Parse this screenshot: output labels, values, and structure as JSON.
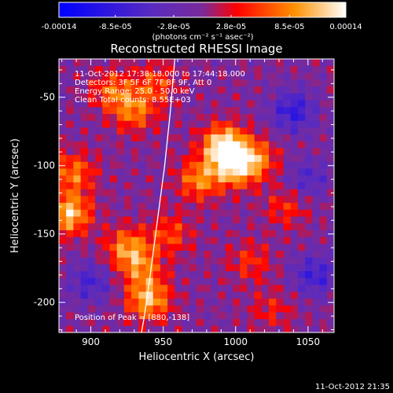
{
  "colorbar": {
    "tick_labels": [
      "-0.00014",
      "-8.5e-05",
      "-2.8e-05",
      "2.8e-05",
      "8.5e-05",
      "0.00014"
    ],
    "tick_values": [
      -0.00014,
      -8.5e-05,
      -2.8e-05,
      2.8e-05,
      8.5e-05,
      0.00014
    ],
    "range": [
      -0.00014,
      0.00014
    ],
    "unit_label": "(photons cm⁻² s⁻¹ asec⁻²)",
    "colors": [
      "#0000ff",
      "#5a2bbf",
      "#7a2a9a",
      "#ff0000",
      "#ff9000",
      "#ffffff"
    ]
  },
  "chart_data": {
    "type": "heatmap",
    "title": "Reconstructed RHESSI Image",
    "xlabel": "Heliocentric X (arcsec)",
    "ylabel": "Heliocentric Y (arcsec)",
    "xlim": [
      878,
      1068
    ],
    "ylim": [
      -222,
      -22
    ],
    "xticks": [
      900,
      950,
      1000,
      1050
    ],
    "yticks": [
      -50,
      -100,
      -150,
      -200
    ],
    "annotations": [
      "11-Oct-2012 17:38:18.000 to 17:44:18.000",
      "Detectors: 3F 5F 6F 7F 8F 9F, Att 0",
      "Energy Range: 25.0 - 50.0 keV",
      "Clean     Total counts: 8.55E+03"
    ],
    "peak_label": "Position of Peak = [880,-138]",
    "peak": [
      880,
      -138
    ],
    "limb_curve": [
      [
        958,
        -22
      ],
      [
        955,
        -60
      ],
      [
        951,
        -100
      ],
      [
        946,
        -140
      ],
      [
        941,
        -180
      ],
      [
        937,
        -210
      ],
      [
        935,
        -222
      ]
    ],
    "sources": [
      {
        "x": 992,
        "y": -85,
        "flux": 0.00014
      },
      {
        "x": 1000,
        "y": -100,
        "flux": 0.00012
      },
      {
        "x": 975,
        "y": -110,
        "flux": 9e-05
      },
      {
        "x": 1015,
        "y": -95,
        "flux": 7e-05
      },
      {
        "x": 930,
        "y": -60,
        "flux": 8e-05
      },
      {
        "x": 915,
        "y": -45,
        "flux": 7e-05
      },
      {
        "x": 945,
        "y": -40,
        "flux": 6e-05
      },
      {
        "x": 885,
        "y": -135,
        "flux": 0.00012
      },
      {
        "x": 888,
        "y": -105,
        "flux": 8e-05
      },
      {
        "x": 925,
        "y": -160,
        "flux": 9e-05
      },
      {
        "x": 935,
        "y": -175,
        "flux": 7e-05
      },
      {
        "x": 940,
        "y": -198,
        "flux": 0.00011
      },
      {
        "x": 955,
        "y": -150,
        "flux": 6e-05
      },
      {
        "x": 1035,
        "y": -130,
        "flux": 5e-05
      },
      {
        "x": 1010,
        "y": -170,
        "flux": 5e-05
      },
      {
        "x": 1025,
        "y": -205,
        "flux": 4e-05
      },
      {
        "x": 1040,
        "y": -60,
        "flux": -8e-05
      },
      {
        "x": 1055,
        "y": -180,
        "flux": -7e-05
      },
      {
        "x": 900,
        "y": -185,
        "flux": -6e-05
      },
      {
        "x": 1050,
        "y": -110,
        "flux": -5e-05
      }
    ]
  },
  "footer": {
    "timestamp": "11-Oct-2012 21:35"
  }
}
